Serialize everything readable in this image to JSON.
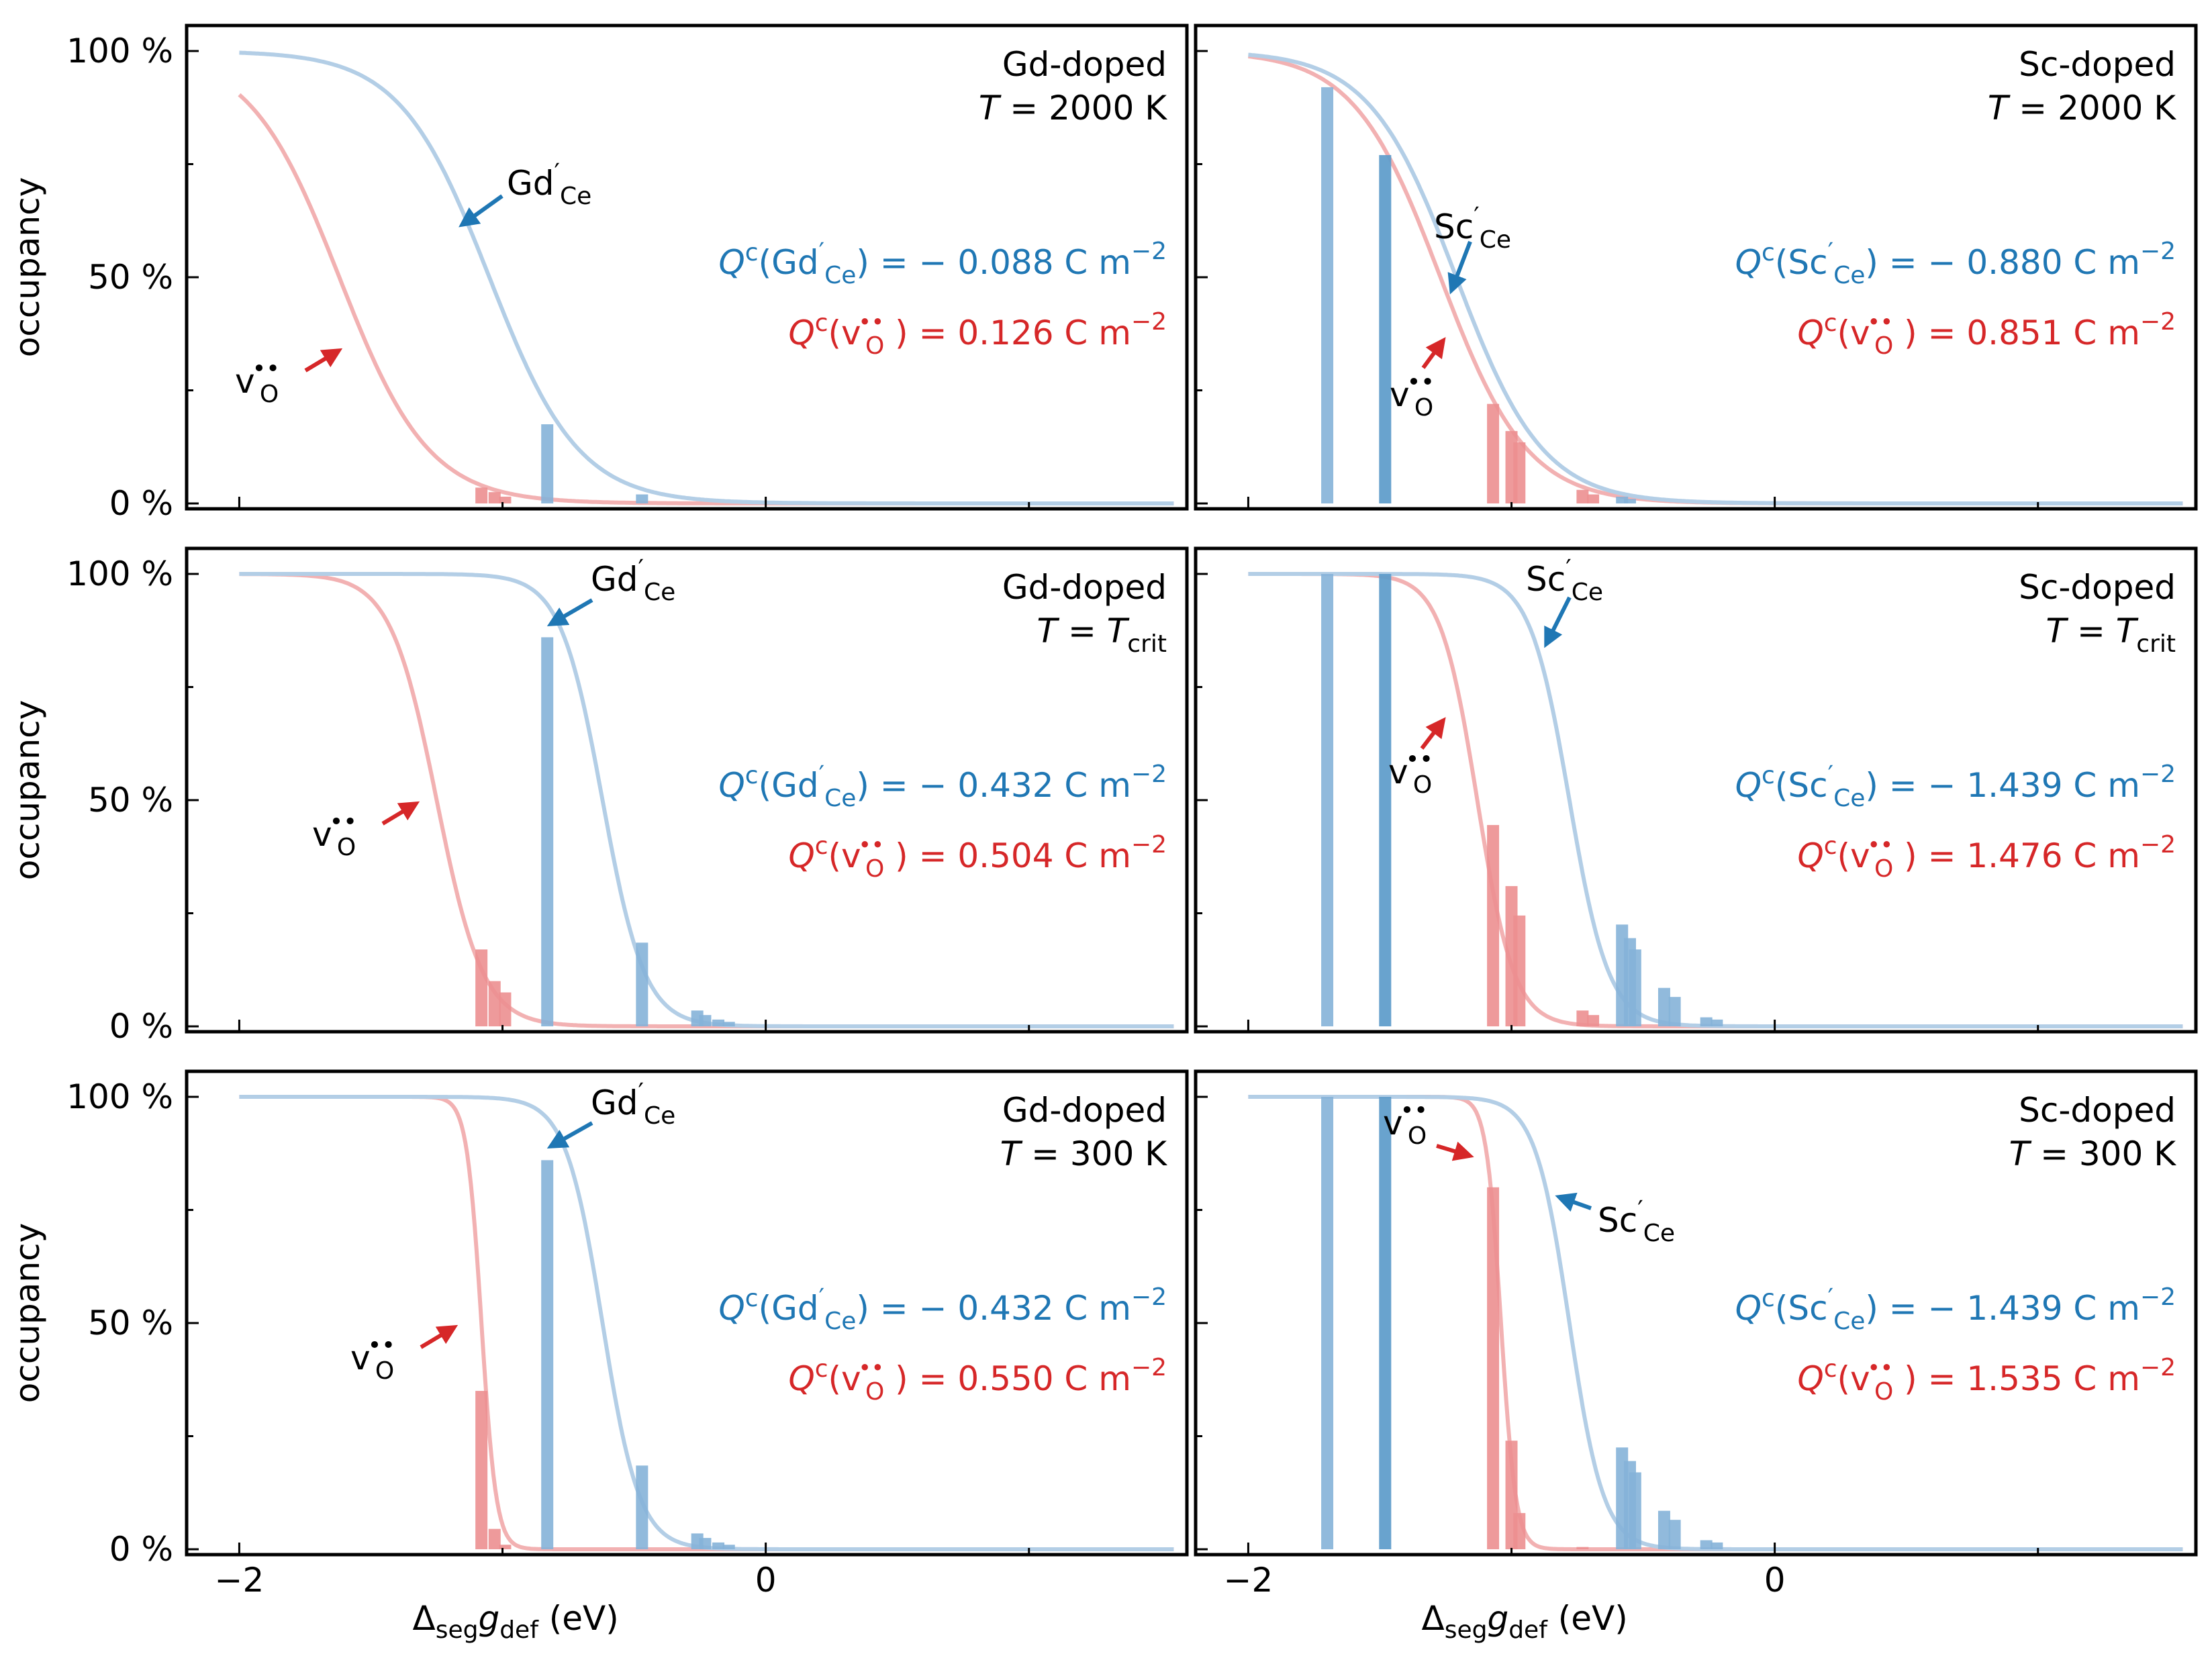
{
  "figure": {
    "y_axis_label": "occupancy",
    "x_axis_label": {
      "delta": "Δ",
      "seg": "seg",
      "g": "g",
      "def": "def",
      "unit": " (eV)"
    },
    "y_tick_labels": [
      "0 %",
      "50 %",
      "100 %"
    ],
    "x_tick_labels": [
      "−2",
      "0"
    ]
  },
  "colors": {
    "blue": "#1f77b4",
    "red": "#d62728",
    "blue_curve": "#b3cee6",
    "red_curve": "#f2b1b2",
    "blue_bar": "#85b3d8",
    "red_bar": "#ec8f90"
  },
  "chart_data": [
    {
      "type": "line+bar",
      "system": "Gd-doped",
      "T_label": "T",
      "T_value": "2000 K",
      "xlim": [
        -2.2,
        1.6
      ],
      "ylim": [
        0,
        100
      ],
      "ylabel": "occupancy",
      "xlabel": "Δseg gdef (eV)",
      "dopant": {
        "symbol": "Gd",
        "superscript": "′",
        "subscript": "Ce",
        "curve": {
          "center": -1.05,
          "width": 0.17,
          "x_start": -2.0
        },
        "bars": [
          {
            "x": -0.83,
            "h": 17.5
          },
          {
            "x": -0.47,
            "h": 2.0
          }
        ]
      },
      "vacancy": {
        "curve": {
          "center": -1.62,
          "width": 0.17,
          "x_start": -2.0
        },
        "bars": [
          {
            "x": -1.08,
            "h": 3.5
          },
          {
            "x": -1.03,
            "h": 2.5
          },
          {
            "x": -0.99,
            "h": 1.5
          }
        ]
      },
      "Q_dopant": {
        "prefix": "Q",
        "sup": "c",
        "open": "(",
        "species": "Gd",
        "sp_sup": "′",
        "sp_sub": "Ce",
        "close": ") = ",
        "value": "− 0.088",
        "unit": " C m",
        "exp": "−2"
      },
      "Q_vacancy": {
        "prefix": "Q",
        "sup": "c",
        "open": "(",
        "species": "v",
        "sp_sup": "••",
        "sp_sub": "O",
        "close": " ) = ",
        "value": "0.126",
        "unit": " C m",
        "exp": "−2"
      }
    },
    {
      "type": "line+bar",
      "system": "Sc-doped",
      "T_label": "T",
      "T_value": "2000 K",
      "xlim": [
        -2.2,
        1.6
      ],
      "ylim": [
        0,
        100
      ],
      "ylabel": "occupancy",
      "xlabel": "Δseg gdef (eV)",
      "dopant": {
        "symbol": "Sc",
        "superscript": "′",
        "subscript": "Ce",
        "curve": {
          "center": -1.21,
          "width": 0.165,
          "x_start": -2.0
        },
        "bars": [
          {
            "x": -1.7,
            "h": 92.0
          },
          {
            "x": -1.48,
            "h": 77.0
          },
          {
            "x": -0.58,
            "h": 1.5
          },
          {
            "x": -0.55,
            "h": 1.0
          }
        ]
      },
      "vacancy": {
        "curve": {
          "center": -1.27,
          "width": 0.165,
          "x_start": -2.0
        },
        "bars": [
          {
            "x": -1.07,
            "h": 22.0
          },
          {
            "x": -1.0,
            "h": 16.0
          },
          {
            "x": -0.97,
            "h": 13.5
          },
          {
            "x": -0.73,
            "h": 3.0
          },
          {
            "x": -0.69,
            "h": 2.0
          }
        ]
      },
      "Q_dopant": {
        "prefix": "Q",
        "sup": "c",
        "open": "(",
        "species": "Sc",
        "sp_sup": "′",
        "sp_sub": "Ce",
        "close": ") = ",
        "value": "− 0.880",
        "unit": " C m",
        "exp": "−2"
      },
      "Q_vacancy": {
        "prefix": "Q",
        "sup": "c",
        "open": "(",
        "species": "v",
        "sp_sup": "••",
        "sp_sub": "O",
        "close": " ) = ",
        "value": "0.851",
        "unit": " C m",
        "exp": "−2"
      }
    },
    {
      "type": "line+bar",
      "system": "Gd-doped",
      "T_label": "T",
      "T_value": "T",
      "T_value_sub": "crit",
      "xlim": [
        -2.2,
        1.6
      ],
      "ylim": [
        0,
        100
      ],
      "ylabel": "occupancy",
      "xlabel": "Δseg gdef (eV)",
      "dopant": {
        "symbol": "Gd",
        "superscript": "′",
        "subscript": "Ce",
        "curve": {
          "center": -0.62,
          "width": 0.08,
          "x_start": -2.0
        },
        "bars": [
          {
            "x": -0.83,
            "h": 86.0
          },
          {
            "x": -0.47,
            "h": 18.5
          },
          {
            "x": -0.26,
            "h": 3.5
          },
          {
            "x": -0.23,
            "h": 2.5
          },
          {
            "x": -0.18,
            "h": 1.5
          },
          {
            "x": -0.14,
            "h": 1.0
          }
        ]
      },
      "vacancy": {
        "curve": {
          "center": -1.25,
          "width": 0.088,
          "x_start": -2.0
        },
        "bars": [
          {
            "x": -1.08,
            "h": 17.0
          },
          {
            "x": -1.03,
            "h": 10.0
          },
          {
            "x": -0.99,
            "h": 7.5
          }
        ]
      },
      "Q_dopant": {
        "prefix": "Q",
        "sup": "c",
        "open": "(",
        "species": "Gd",
        "sp_sup": "′",
        "sp_sub": "Ce",
        "close": ") = ",
        "value": "− 0.432",
        "unit": " C m",
        "exp": "−2"
      },
      "Q_vacancy": {
        "prefix": "Q",
        "sup": "c",
        "open": "(",
        "species": "v",
        "sp_sup": "••",
        "sp_sub": "O",
        "close": " ) = ",
        "value": "0.504",
        "unit": " C m",
        "exp": "−2"
      }
    },
    {
      "type": "line+bar",
      "system": "Sc-doped",
      "T_label": "T",
      "T_value": "T",
      "T_value_sub": "crit",
      "xlim": [
        -2.2,
        1.6
      ],
      "ylim": [
        0,
        100
      ],
      "ylabel": "occupancy",
      "xlabel": "Δseg gdef (eV)",
      "dopant": {
        "symbol": "Sc",
        "superscript": "′",
        "subscript": "Ce",
        "curve": {
          "center": -0.78,
          "width": 0.075,
          "x_start": -2.0
        },
        "bars": [
          {
            "x": -1.7,
            "h": 100.0
          },
          {
            "x": -1.48,
            "h": 100.0
          },
          {
            "x": -0.58,
            "h": 22.5
          },
          {
            "x": -0.55,
            "h": 19.5
          },
          {
            "x": -0.53,
            "h": 17.0
          },
          {
            "x": -0.42,
            "h": 8.5
          },
          {
            "x": -0.38,
            "h": 6.5
          },
          {
            "x": -0.26,
            "h": 2.0
          },
          {
            "x": -0.22,
            "h": 1.5
          }
        ]
      },
      "vacancy": {
        "curve": {
          "center": -1.13,
          "width": 0.07,
          "x_start": -2.0
        },
        "bars": [
          {
            "x": -1.07,
            "h": 44.5
          },
          {
            "x": -1.0,
            "h": 31.0
          },
          {
            "x": -0.97,
            "h": 24.5
          },
          {
            "x": -0.73,
            "h": 3.5
          },
          {
            "x": -0.69,
            "h": 2.5
          }
        ]
      },
      "Q_dopant": {
        "prefix": "Q",
        "sup": "c",
        "open": "(",
        "species": "Sc",
        "sp_sup": "′",
        "sp_sub": "Ce",
        "close": ") = ",
        "value": "− 1.439",
        "unit": " C m",
        "exp": "−2"
      },
      "Q_vacancy": {
        "prefix": "Q",
        "sup": "c",
        "open": "(",
        "species": "v",
        "sp_sup": "••",
        "sp_sub": "O",
        "close": " ) = ",
        "value": "1.476",
        "unit": " C m",
        "exp": "−2"
      }
    },
    {
      "type": "line+bar",
      "system": "Gd-doped",
      "T_label": "T",
      "T_value": "300 K",
      "xlim": [
        -2.2,
        1.6
      ],
      "ylim": [
        0,
        100
      ],
      "ylabel": "occupancy",
      "xlabel": "Δseg gdef (eV)",
      "dopant": {
        "symbol": "Gd",
        "superscript": "′",
        "subscript": "Ce",
        "curve": {
          "center": -0.62,
          "width": 0.07,
          "x_start": -2.0
        },
        "bars": [
          {
            "x": -0.83,
            "h": 86.0
          },
          {
            "x": -0.47,
            "h": 18.5
          },
          {
            "x": -0.26,
            "h": 3.5
          },
          {
            "x": -0.23,
            "h": 2.5
          },
          {
            "x": -0.18,
            "h": 1.5
          },
          {
            "x": -0.14,
            "h": 1.0
          }
        ]
      },
      "vacancy": {
        "curve": {
          "center": -1.08,
          "width": 0.028,
          "x_start": -2.0
        },
        "bars": [
          {
            "x": -1.08,
            "h": 35.0
          },
          {
            "x": -1.03,
            "h": 4.5
          },
          {
            "x": -0.99,
            "h": 1.0
          }
        ]
      },
      "Q_dopant": {
        "prefix": "Q",
        "sup": "c",
        "open": "(",
        "species": "Gd",
        "sp_sup": "′",
        "sp_sub": "Ce",
        "close": ") = ",
        "value": "− 0.432",
        "unit": " C m",
        "exp": "−2"
      },
      "Q_vacancy": {
        "prefix": "Q",
        "sup": "c",
        "open": "(",
        "species": "v",
        "sp_sup": "••",
        "sp_sub": "O",
        "close": " ) = ",
        "value": "0.550",
        "unit": " C m",
        "exp": "−2"
      }
    },
    {
      "type": "line+bar",
      "system": "Sc-doped",
      "T_label": "T",
      "T_value": "300 K",
      "xlim": [
        -2.2,
        1.6
      ],
      "ylim": [
        0,
        100
      ],
      "ylabel": "occupancy",
      "xlabel": "Δseg gdef (eV)",
      "dopant": {
        "symbol": "Sc",
        "superscript": "′",
        "subscript": "Ce",
        "curve": {
          "center": -0.78,
          "width": 0.065,
          "x_start": -2.0
        },
        "bars": [
          {
            "x": -1.7,
            "h": 100.0
          },
          {
            "x": -1.48,
            "h": 100.0
          },
          {
            "x": -0.58,
            "h": 22.5
          },
          {
            "x": -0.55,
            "h": 19.5
          },
          {
            "x": -0.53,
            "h": 17.0
          },
          {
            "x": -0.42,
            "h": 8.5
          },
          {
            "x": -0.38,
            "h": 6.5
          },
          {
            "x": -0.26,
            "h": 2.0
          },
          {
            "x": -0.22,
            "h": 1.5
          }
        ]
      },
      "vacancy": {
        "curve": {
          "center": -1.04,
          "width": 0.028,
          "x_start": -2.0
        },
        "bars": [
          {
            "x": -1.07,
            "h": 80.0
          },
          {
            "x": -1.0,
            "h": 24.0
          },
          {
            "x": -0.97,
            "h": 8.0
          },
          {
            "x": -0.73,
            "h": 0.5
          }
        ]
      },
      "Q_dopant": {
        "prefix": "Q",
        "sup": "c",
        "open": "(",
        "species": "Sc",
        "sp_sup": "′",
        "sp_sub": "Ce",
        "close": ") = ",
        "value": "− 1.439",
        "unit": " C m",
        "exp": "−2"
      },
      "Q_vacancy": {
        "prefix": "Q",
        "sup": "c",
        "open": "(",
        "species": "v",
        "sp_sup": "••",
        "sp_sub": "O",
        "close": " ) = ",
        "value": "1.535",
        "unit": " C m",
        "exp": "−2"
      }
    }
  ]
}
